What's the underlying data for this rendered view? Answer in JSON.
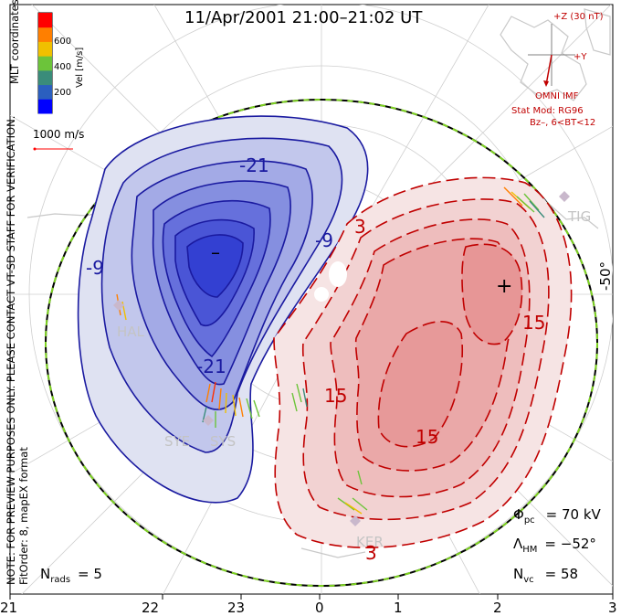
{
  "title": "11/Apr/2001  21:00–21:02 UT",
  "side_note": "NOTE: FOR PREVIEW PURPOSES ONLY. PLEASE CONTACT VT-SD STAFF FOR VERIFICATION.",
  "mlt_coords": "MLT coordinates",
  "fit_order": "FitOrder: 8, mapEX format",
  "colorbar": {
    "label": "Vel [m/s]",
    "ticks": [
      "600",
      "400",
      "200"
    ],
    "colors": [
      "#0000ff",
      "#2b5fbf",
      "#3a8c7a",
      "#6cc43a",
      "#f0c000",
      "#ff7f00",
      "#ff0000"
    ]
  },
  "reference_vector": "1000 m/s",
  "imf": {
    "z_label": "+Z (30 nT)",
    "y_label": "+Y",
    "source": "OMNI IMF",
    "stat_mod": "Stat Mod: RG96",
    "condition": "Bz–, 6<BT<12"
  },
  "lat_label": "-50°",
  "contour_labels": {
    "neg": [
      "-21",
      "-9",
      "-21",
      "-9"
    ],
    "pos": [
      "3",
      "15",
      "15",
      "15",
      "3"
    ]
  },
  "extrema": {
    "min": "–",
    "max": "+"
  },
  "stations": [
    "HAL",
    "SYE",
    "SYS",
    "KER",
    "TIG"
  ],
  "stats": {
    "phi_pc_sym": "Φ",
    "phi_pc_sub": "pc",
    "phi_pc_val": "= 70 kV",
    "lambda_sym": "Λ",
    "lambda_sub": "HM",
    "lambda_val": "= −52°",
    "nvc_sym": "N",
    "nvc_sub": "vc",
    "nvc_val": "= 58",
    "nrads_sym": "N",
    "nrads_sub": "rads",
    "nrads_val": "= 5"
  },
  "mlt_ticks": [
    "21",
    "22",
    "23",
    "0",
    "1",
    "2",
    "3"
  ]
}
